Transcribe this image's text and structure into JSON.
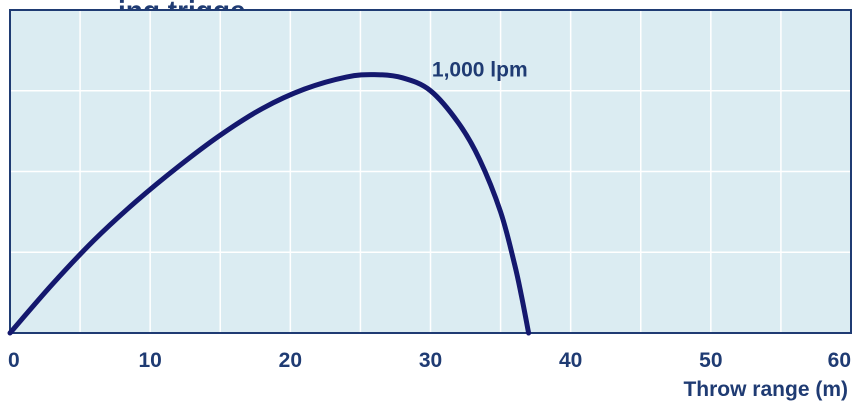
{
  "chart_data": {
    "type": "line",
    "title": "ing trigge",
    "xlabel": "Throw range (m)",
    "ylabel": "",
    "xlim": [
      0,
      60
    ],
    "ylim": [
      0,
      4
    ],
    "x_ticks": [
      "0",
      "10",
      "20",
      "30",
      "40",
      "50",
      "60"
    ],
    "grid": true,
    "series": [
      {
        "name": "1,000 lpm",
        "x": [
          0,
          3,
          6,
          9,
          12,
          15,
          18,
          21,
          24,
          26,
          28,
          30,
          32,
          33.5,
          35,
          36,
          36.5,
          37
        ],
        "y": [
          0,
          0.6,
          1.15,
          1.63,
          2.06,
          2.45,
          2.78,
          3.02,
          3.17,
          3.2,
          3.16,
          3.0,
          2.6,
          2.15,
          1.5,
          0.85,
          0.45,
          0
        ]
      }
    ],
    "colors": {
      "plot_background": "#dbecf2",
      "grid": "#ffffff",
      "axis_frame": "#1f3b73",
      "line": "#14186e",
      "text": "#1f3b73"
    }
  }
}
